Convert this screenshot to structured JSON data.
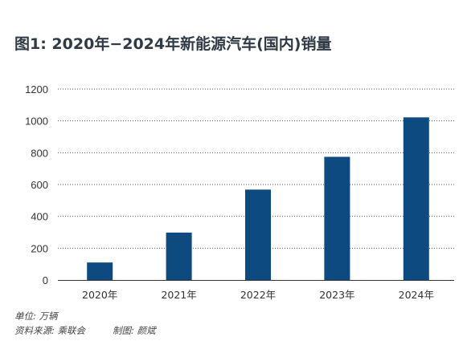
{
  "title": "图1: 2020年−2024年新能源汽车(国内)销量",
  "footnotes": {
    "unit": "单位: 万辆",
    "source": "资料来源: 乘联会",
    "author": "制图: 颜斌"
  },
  "colors": {
    "bar": "#0d4a80",
    "grid": "#555555",
    "axis": "#333333"
  },
  "chart_data": {
    "type": "bar",
    "title": "图1: 2020年−2024年新能源汽车(国内)销量",
    "xlabel": "",
    "ylabel": "",
    "unit": "万辆",
    "categories": [
      "2020年",
      "2021年",
      "2022年",
      "2023年",
      "2024年"
    ],
    "values": [
      110,
      298,
      568,
      774,
      1022
    ],
    "ylim": [
      0,
      1200
    ],
    "yticks": [
      0,
      200,
      400,
      600,
      800,
      1000,
      1200
    ],
    "grid": true,
    "grid_style": "dotted",
    "legend": "none"
  }
}
